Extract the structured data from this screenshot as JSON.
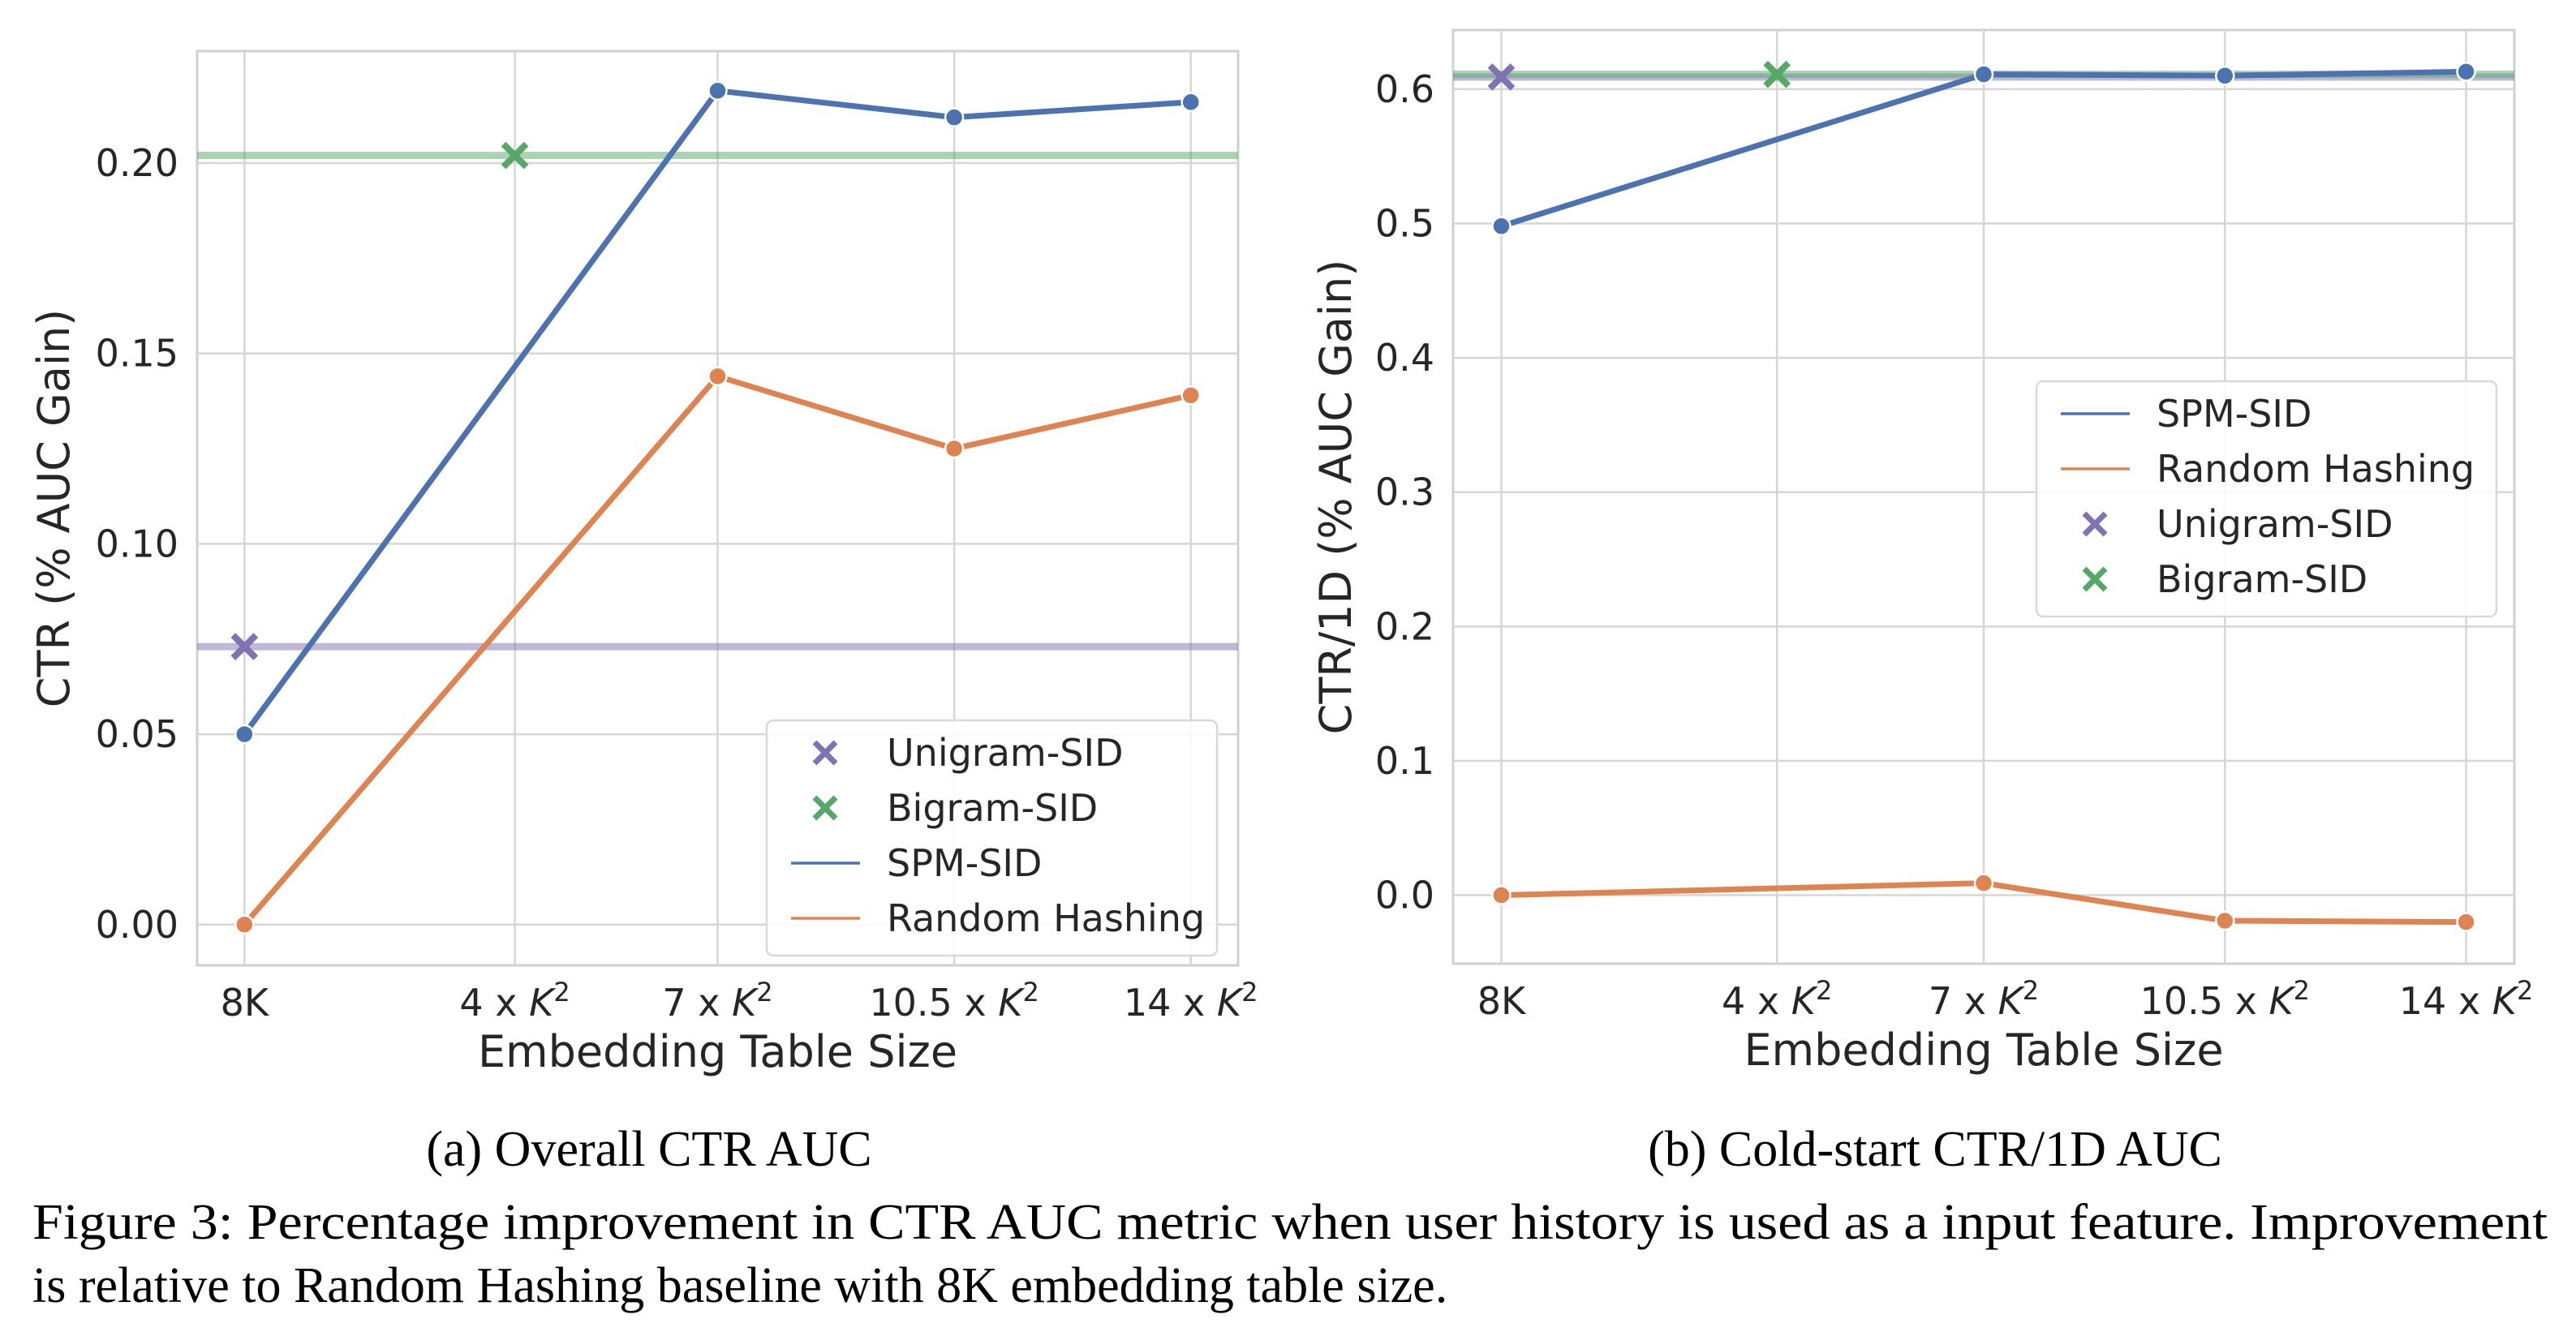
{
  "chart_data": [
    {
      "type": "line",
      "id": "a",
      "title": "",
      "caption": "(a) Overall CTR AUC",
      "xlabel": "Embedding Table Size",
      "ylabel": "CTR (% AUC Gain)",
      "x": [
        0,
        4,
        7,
        10.5,
        14
      ],
      "xtick_labels": [
        {
          "base": "8K",
          "sup": ""
        },
        {
          "base": "4 x K",
          "sup": "2"
        },
        {
          "base": "7 x K",
          "sup": "2"
        },
        {
          "base": "10.5 x K",
          "sup": "2"
        },
        {
          "base": "14 x K",
          "sup": "2"
        }
      ],
      "yticks": [
        0.0,
        0.05,
        0.1,
        0.15,
        0.2
      ],
      "ytick_labels": [
        "0.00",
        "0.05",
        "0.10",
        "0.15",
        "0.20"
      ],
      "ylim": [
        -0.0107,
        0.2294
      ],
      "xlim": [
        -0.7,
        14.7
      ],
      "grid": true,
      "legend_position": "lower-right",
      "legend_order": [
        "Unigram-SID",
        "Bigram-SID",
        "SPM-SID",
        "Random Hashing"
      ],
      "series": [
        {
          "name": "SPM-SID",
          "kind": "line",
          "color": "#4c72b0",
          "values": [
            0.05,
            null,
            0.219,
            0.212,
            0.216
          ]
        },
        {
          "name": "Random Hashing",
          "kind": "line",
          "color": "#dd8452",
          "values": [
            0.0,
            null,
            0.144,
            0.125,
            0.139
          ]
        },
        {
          "name": "Unigram-SID",
          "kind": "marker",
          "color": "#8172b3",
          "x": 0,
          "value": 0.073,
          "hline": true
        },
        {
          "name": "Bigram-SID",
          "kind": "marker",
          "color": "#55a868",
          "x": 4,
          "value": 0.202,
          "hline": true
        }
      ]
    },
    {
      "type": "line",
      "id": "b",
      "title": "",
      "caption": "(b) Cold-start CTR/1D AUC",
      "xlabel": "Embedding Table Size",
      "ylabel": "CTR/1D (% AUC Gain)",
      "x": [
        0,
        4,
        7,
        10.5,
        14
      ],
      "xtick_labels": [
        {
          "base": "8K",
          "sup": ""
        },
        {
          "base": "4 x K",
          "sup": "2"
        },
        {
          "base": "7 x K",
          "sup": "2"
        },
        {
          "base": "10.5 x K",
          "sup": "2"
        },
        {
          "base": "14 x K",
          "sup": "2"
        }
      ],
      "yticks": [
        0.0,
        0.1,
        0.2,
        0.3,
        0.4,
        0.5,
        0.6
      ],
      "ytick_labels": [
        "0.0",
        "0.1",
        "0.2",
        "0.3",
        "0.4",
        "0.5",
        "0.6"
      ],
      "ylim": [
        -0.051,
        0.644
      ],
      "xlim": [
        -0.7,
        14.7
      ],
      "grid": true,
      "legend_position": "center-right",
      "legend_order": [
        "SPM-SID",
        "Random Hashing",
        "Unigram-SID",
        "Bigram-SID"
      ],
      "series": [
        {
          "name": "SPM-SID",
          "kind": "line",
          "color": "#4c72b0",
          "values": [
            0.498,
            null,
            0.611,
            0.61,
            0.613
          ]
        },
        {
          "name": "Random Hashing",
          "kind": "line",
          "color": "#dd8452",
          "values": [
            0.0,
            null,
            0.009,
            -0.019,
            -0.02
          ]
        },
        {
          "name": "Unigram-SID",
          "kind": "marker",
          "color": "#8172b3",
          "x": 0,
          "value": 0.609,
          "hline": true
        },
        {
          "name": "Bigram-SID",
          "kind": "marker",
          "color": "#55a868",
          "x": 4,
          "value": 0.611,
          "hline": true
        }
      ]
    }
  ],
  "figure_caption": {
    "line1": "Figure 3: Percentage improvement in CTR AUC metric when user history is used as a input feature. Improvement",
    "line2": "is relative to Random Hashing baseline with 8K embedding table size."
  }
}
